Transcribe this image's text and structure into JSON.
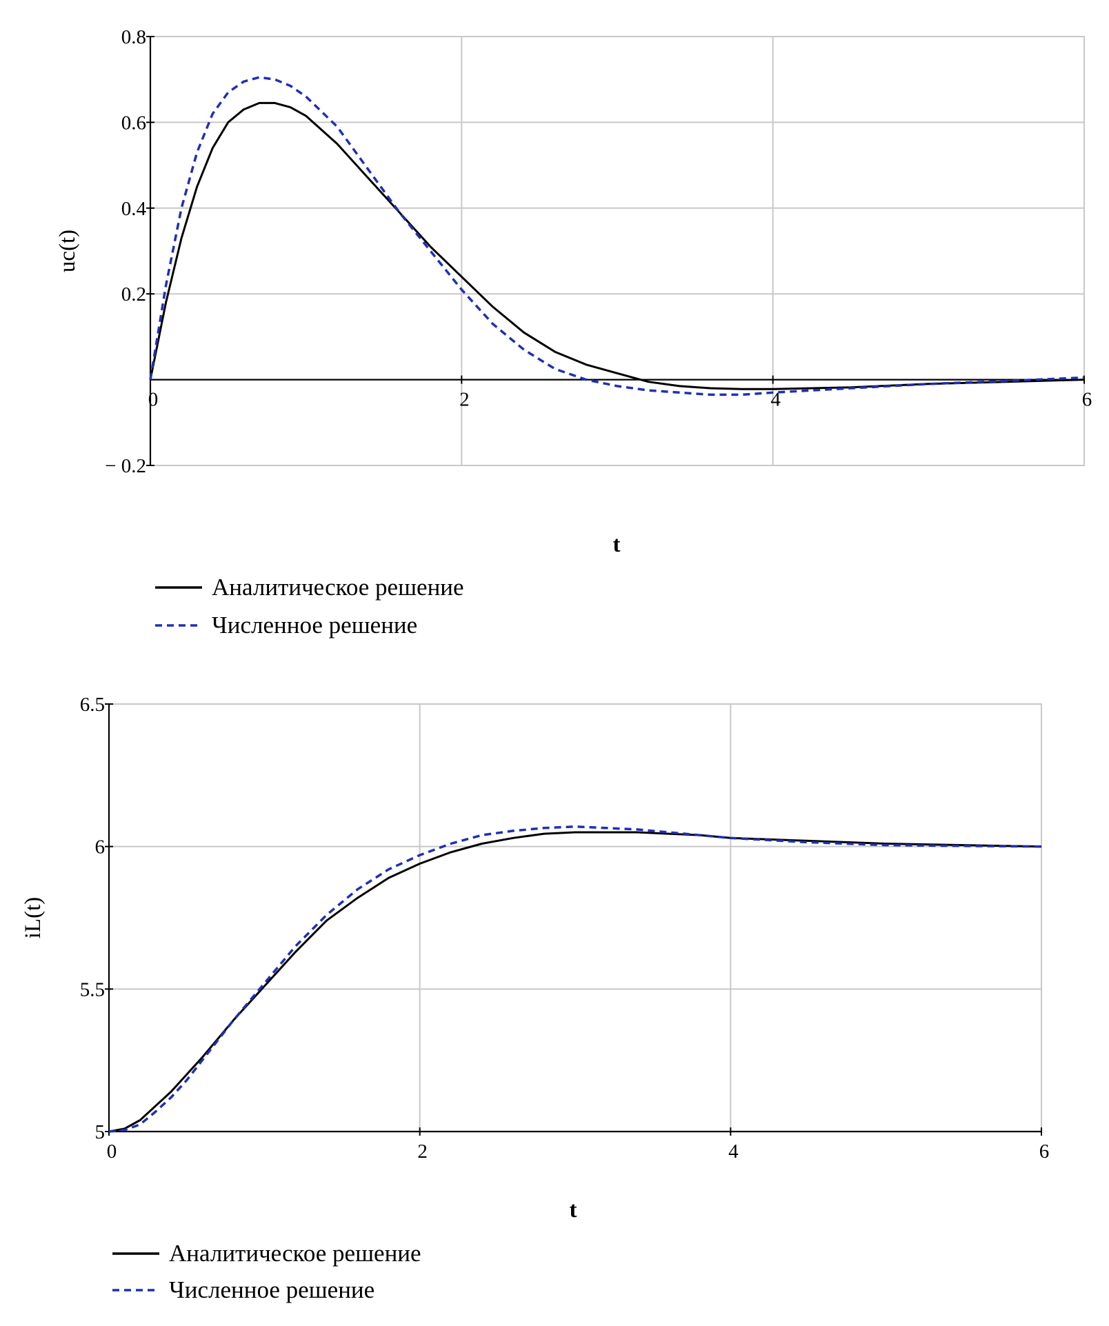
{
  "chart_data": [
    {
      "type": "line",
      "title": "",
      "xlabel": "t",
      "ylabel": "uc(t)",
      "xlim": [
        0,
        6
      ],
      "ylim": [
        -0.2,
        0.8
      ],
      "xticks": [
        0,
        2,
        4,
        6
      ],
      "xtick_labels": [
        "0",
        "2",
        "4",
        "6"
      ],
      "yticks": [
        -0.2,
        0.2,
        0.4,
        0.6,
        0.8
      ],
      "ytick_labels": [
        "− 0.2",
        "0.2",
        "0.4",
        "0.6",
        "0.8"
      ],
      "grid": true,
      "legend_position": "bottom-left",
      "series": [
        {
          "name": "Аналитическое решение",
          "style": "solid",
          "color": "#000000",
          "x": [
            0,
            0.1,
            0.2,
            0.3,
            0.4,
            0.5,
            0.6,
            0.7,
            0.8,
            0.9,
            1.0,
            1.2,
            1.4,
            1.6,
            1.8,
            2.0,
            2.2,
            2.4,
            2.6,
            2.8,
            3.0,
            3.2,
            3.4,
            3.6,
            3.8,
            4.0,
            4.5,
            5.0,
            5.5,
            6.0
          ],
          "y": [
            0,
            0.18,
            0.33,
            0.45,
            0.54,
            0.6,
            0.63,
            0.645,
            0.645,
            0.635,
            0.615,
            0.55,
            0.47,
            0.39,
            0.31,
            0.24,
            0.17,
            0.11,
            0.065,
            0.035,
            0.015,
            -0.005,
            -0.015,
            -0.02,
            -0.022,
            -0.022,
            -0.018,
            -0.01,
            -0.005,
            0.0
          ]
        },
        {
          "name": "Численное решение",
          "style": "dashed",
          "color": "#1f2fb5",
          "x": [
            0,
            0.1,
            0.2,
            0.3,
            0.4,
            0.5,
            0.6,
            0.7,
            0.8,
            0.9,
            1.0,
            1.2,
            1.4,
            1.6,
            1.8,
            2.0,
            2.2,
            2.4,
            2.6,
            2.8,
            3.0,
            3.2,
            3.4,
            3.6,
            3.8,
            4.0,
            4.5,
            5.0,
            5.5,
            6.0
          ],
          "y": [
            0,
            0.22,
            0.4,
            0.53,
            0.62,
            0.67,
            0.695,
            0.705,
            0.7,
            0.685,
            0.66,
            0.59,
            0.49,
            0.39,
            0.3,
            0.21,
            0.13,
            0.07,
            0.025,
            0.0,
            -0.015,
            -0.025,
            -0.03,
            -0.035,
            -0.035,
            -0.03,
            -0.02,
            -0.01,
            -0.003,
            0.005
          ]
        }
      ]
    },
    {
      "type": "line",
      "title": "",
      "xlabel": "t",
      "ylabel": "iL(t)",
      "xlim": [
        0,
        6
      ],
      "ylim": [
        5,
        6.5
      ],
      "xticks": [
        0,
        2,
        4,
        6
      ],
      "xtick_labels": [
        "0",
        "2",
        "4",
        "6"
      ],
      "yticks": [
        5,
        5.5,
        6,
        6.5
      ],
      "ytick_labels": [
        "5",
        "5.5",
        "6",
        "6.5"
      ],
      "grid": true,
      "legend_position": "bottom-left",
      "series": [
        {
          "name": "Аналитическое решение",
          "style": "solid",
          "color": "#000000",
          "x": [
            0,
            0.1,
            0.2,
            0.3,
            0.4,
            0.5,
            0.6,
            0.8,
            1.0,
            1.2,
            1.4,
            1.6,
            1.8,
            2.0,
            2.2,
            2.4,
            2.6,
            2.8,
            3.0,
            3.2,
            3.4,
            3.6,
            3.8,
            4.0,
            4.5,
            5.0,
            5.5,
            6.0
          ],
          "y": [
            5,
            5.01,
            5.04,
            5.09,
            5.14,
            5.2,
            5.26,
            5.39,
            5.51,
            5.63,
            5.74,
            5.82,
            5.89,
            5.94,
            5.98,
            6.01,
            6.03,
            6.045,
            6.05,
            6.05,
            6.05,
            6.045,
            6.04,
            6.03,
            6.02,
            6.01,
            6.005,
            6.0
          ]
        },
        {
          "name": "Численное решение",
          "style": "dashed",
          "color": "#1f2fb5",
          "x": [
            0,
            0.1,
            0.2,
            0.3,
            0.4,
            0.5,
            0.6,
            0.8,
            1.0,
            1.2,
            1.4,
            1.6,
            1.8,
            2.0,
            2.2,
            2.4,
            2.6,
            2.8,
            3.0,
            3.2,
            3.4,
            3.6,
            3.8,
            4.0,
            4.5,
            5.0,
            5.5,
            6.0
          ],
          "y": [
            5,
            5.005,
            5.025,
            5.07,
            5.12,
            5.18,
            5.25,
            5.39,
            5.52,
            5.65,
            5.76,
            5.85,
            5.92,
            5.97,
            6.01,
            6.04,
            6.055,
            6.065,
            6.07,
            6.065,
            6.06,
            6.05,
            6.04,
            6.03,
            6.015,
            6.005,
            6.002,
            6.0
          ]
        }
      ]
    }
  ]
}
